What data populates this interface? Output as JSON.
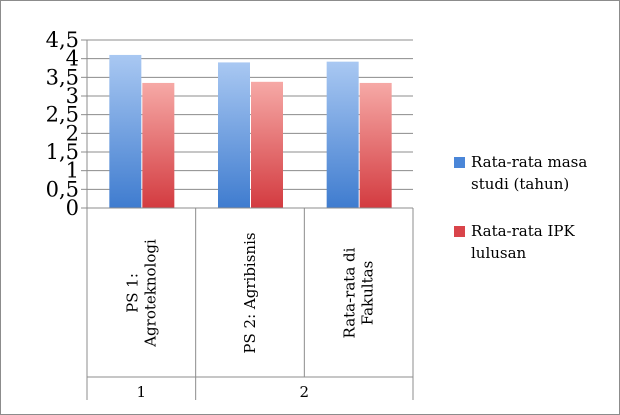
{
  "chart_data": {
    "type": "bar",
    "categories": [
      [
        "PS 1:",
        "Agroteknologi"
      ],
      [
        "PS 2: Agribisnis"
      ],
      [
        "Rata-rata di",
        "Fakultas"
      ]
    ],
    "groups": [
      {
        "label": "1",
        "span": [
          0,
          0
        ]
      },
      {
        "label": "2",
        "span": [
          1,
          2
        ]
      }
    ],
    "series": [
      {
        "name": "Rata-rata masa studi (tahun)",
        "legend_lines": [
          "Rata-rata masa",
          "studi (tahun)"
        ],
        "color": "#4a86d8",
        "values": [
          4.1,
          3.9,
          3.92
        ]
      },
      {
        "name": "Rata-rata IPK lulusan",
        "legend_lines": [
          "Rata-rata IPK",
          "lulusan"
        ],
        "color": "#d9444a",
        "values": [
          3.35,
          3.38,
          3.35
        ]
      }
    ],
    "ylim": [
      0,
      4.5
    ],
    "yticks": [
      "0",
      "0,5",
      "1",
      "1,5",
      "2",
      "2,5",
      "3",
      "3,5",
      "4",
      "4,5"
    ],
    "grid": true,
    "legend": "right"
  }
}
